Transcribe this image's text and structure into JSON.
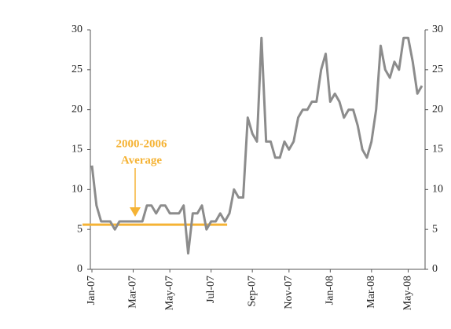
{
  "chart_data": {
    "type": "line",
    "categories": [
      "Jan-07",
      null,
      null,
      null,
      null,
      null,
      null,
      null,
      null,
      "Mar-07",
      null,
      null,
      null,
      null,
      null,
      null,
      null,
      "May-07",
      null,
      null,
      null,
      null,
      null,
      null,
      null,
      null,
      "Jul-07",
      null,
      null,
      null,
      null,
      null,
      null,
      null,
      null,
      "Sep-07",
      null,
      null,
      null,
      null,
      null,
      null,
      null,
      "Nov-07",
      null,
      null,
      null,
      null,
      null,
      null,
      null,
      null,
      "Jan-08",
      null,
      null,
      null,
      null,
      null,
      null,
      null,
      null,
      "Mar-08",
      null,
      null,
      null,
      null,
      null,
      null,
      null,
      "May-08",
      null,
      null,
      null
    ],
    "values": [
      13,
      8,
      6,
      6,
      6,
      5,
      6,
      6,
      6,
      6,
      6,
      6,
      8,
      8,
      7,
      8,
      8,
      7,
      7,
      7,
      8,
      2,
      7,
      7,
      8,
      5,
      6,
      6,
      7,
      6,
      7,
      10,
      9,
      9,
      19,
      17,
      16,
      29,
      16,
      16,
      14,
      14,
      16,
      15,
      16,
      19,
      20,
      20,
      21,
      21,
      25,
      27,
      21,
      22,
      21,
      19,
      20,
      20,
      18,
      15,
      14,
      16,
      20,
      28,
      25,
      24,
      26,
      25,
      29,
      29,
      26,
      22,
      23
    ],
    "color": "#8c8c8c",
    "ylim": [
      0,
      30
    ],
    "yticks": [
      0,
      5,
      10,
      15,
      20,
      25,
      30
    ],
    "y2lim": [
      0,
      30
    ],
    "y2ticks": [
      0,
      5,
      10,
      15,
      20,
      25,
      30
    ],
    "average": 5.6,
    "average_color": "#f5b335",
    "annotation": [
      "2000-2006",
      "Average"
    ]
  }
}
